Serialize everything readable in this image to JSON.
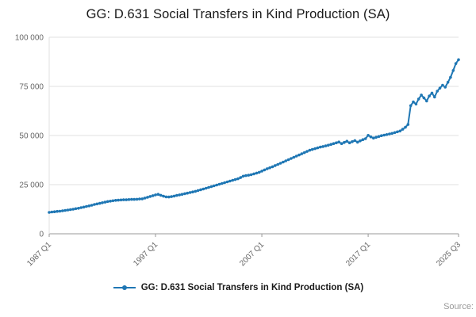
{
  "title": "GG: D.631 Social Transfers in Kind Production (SA)",
  "legend": {
    "label": "GG: D.631 Social Transfers in Kind Production (SA)"
  },
  "source_label": "Source:",
  "colors": {
    "series_line": "#1f77b4",
    "grid": "#e2e2e2",
    "axis": "#999999",
    "tick_text": "#666666"
  },
  "chart_data": {
    "type": "line",
    "title": "GG: D.631 Social Transfers in Kind Production (SA)",
    "xlabel": "",
    "ylabel": "",
    "ylim": [
      0,
      100000
    ],
    "grid": "horizontal",
    "legend_position": "bottom",
    "x_start": "1987 Q1",
    "x_end": "2025 Q3",
    "frequency": "quarterly",
    "x_tick_labels": [
      "1987 Q1",
      "1997 Q1",
      "2007 Q1",
      "2017 Q1",
      "2025 Q3"
    ],
    "x_tick_indices": [
      0,
      40,
      80,
      120,
      154
    ],
    "y_ticks": [
      0,
      25000,
      50000,
      75000,
      100000
    ],
    "y_tick_labels": [
      "0",
      "25 000",
      "50 000",
      "75 000",
      "100 000"
    ],
    "series": [
      {
        "name": "GG: D.631 Social Transfers in Kind Production (SA)",
        "color": "#1f77b4",
        "values": [
          10900,
          11100,
          11200,
          11400,
          11500,
          11700,
          11900,
          12100,
          12300,
          12500,
          12800,
          13000,
          13300,
          13600,
          13900,
          14200,
          14500,
          14900,
          15200,
          15500,
          15800,
          16100,
          16400,
          16600,
          16800,
          17000,
          17100,
          17200,
          17300,
          17300,
          17400,
          17500,
          17500,
          17600,
          17700,
          17800,
          18200,
          18600,
          19000,
          19400,
          19800,
          20100,
          19600,
          19100,
          18800,
          18700,
          18900,
          19200,
          19500,
          19800,
          20100,
          20400,
          20700,
          21000,
          21300,
          21600,
          22000,
          22400,
          22800,
          23200,
          23600,
          24000,
          24400,
          24800,
          25200,
          25600,
          26000,
          26400,
          26800,
          27200,
          27600,
          28000,
          28600,
          29300,
          29600,
          29800,
          30100,
          30500,
          30900,
          31300,
          31900,
          32500,
          33100,
          33600,
          34100,
          34700,
          35300,
          35900,
          36500,
          37100,
          37700,
          38300,
          38900,
          39500,
          40100,
          40700,
          41300,
          41900,
          42500,
          42900,
          43300,
          43700,
          44100,
          44400,
          44700,
          45100,
          45500,
          45900,
          46300,
          46700,
          45900,
          46500,
          47100,
          46300,
          46900,
          47400,
          46600,
          47300,
          47900,
          48400,
          50100,
          49300,
          48700,
          49100,
          49500,
          49900,
          50200,
          50500,
          50800,
          51100,
          51500,
          51900,
          52300,
          53200,
          54200,
          55600,
          65200,
          67100,
          66000,
          68600,
          70600,
          69100,
          67600,
          70100,
          71600,
          69600,
          72600,
          74100,
          75600,
          74600,
          77100,
          79600,
          83100,
          86600,
          88600
        ]
      }
    ]
  }
}
